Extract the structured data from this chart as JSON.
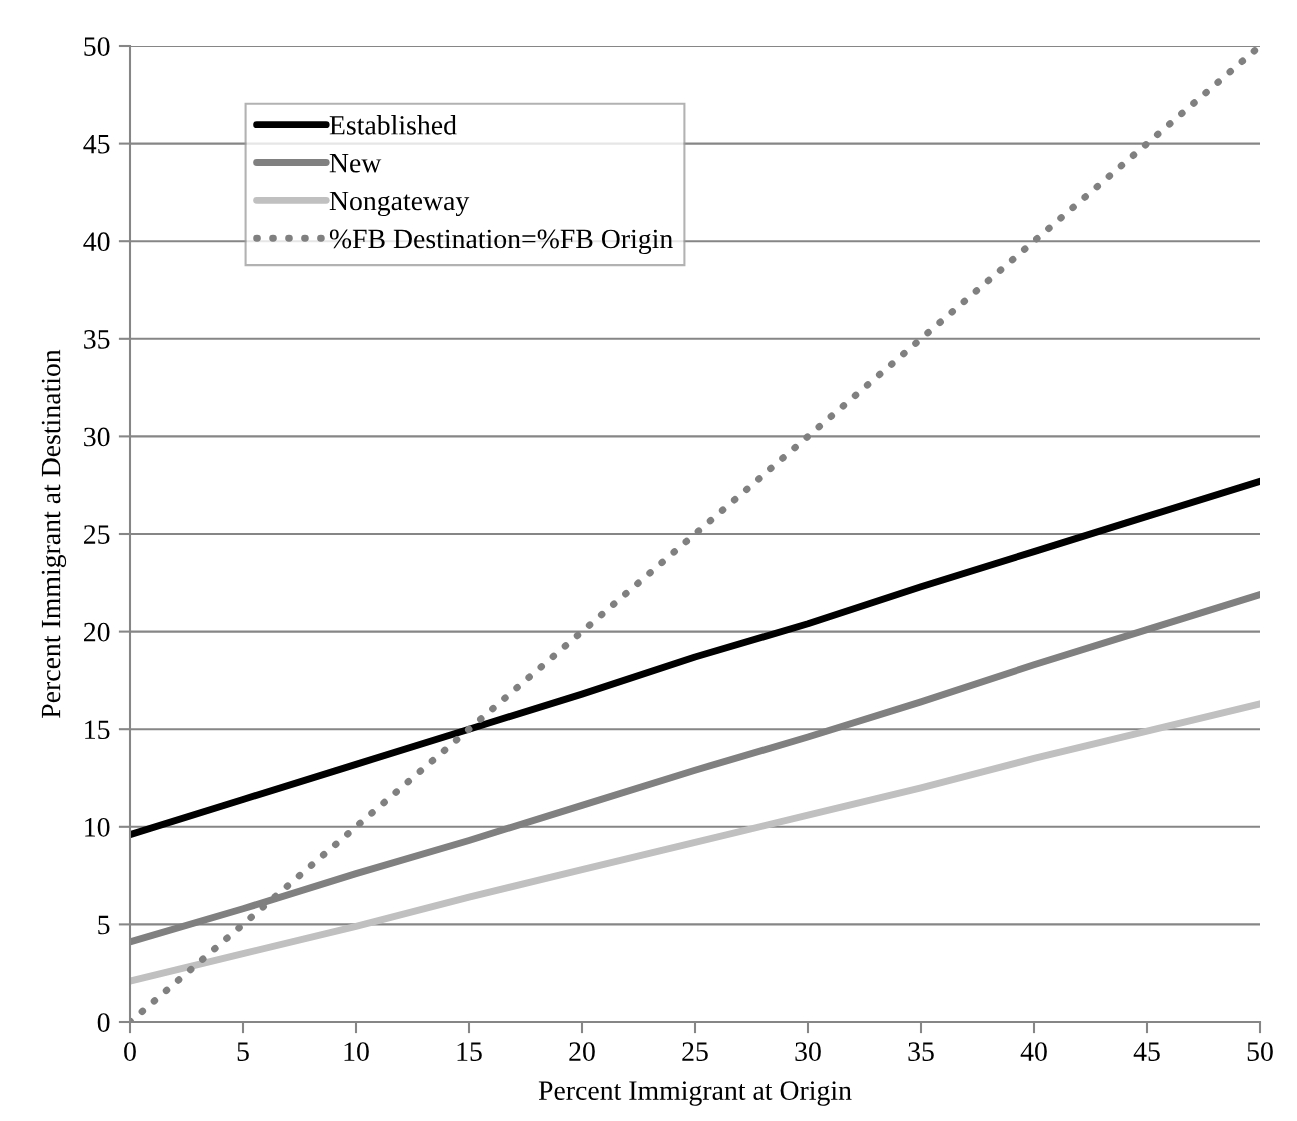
{
  "chart_data": {
    "type": "line",
    "xlabel": "Percent Immigrant at Origin",
    "ylabel": "Percent Immigrant at Destination",
    "x": [
      0,
      5,
      10,
      15,
      20,
      25,
      30,
      35,
      40,
      45,
      50
    ],
    "series": [
      {
        "name": "Established",
        "color": "#000000",
        "values": [
          9.6,
          11.4,
          13.2,
          15.0,
          16.8,
          18.7,
          20.4,
          22.3,
          24.1,
          25.9,
          27.7
        ]
      },
      {
        "name": "New",
        "color": "#808080",
        "values": [
          4.1,
          5.8,
          7.6,
          9.3,
          11.1,
          12.9,
          14.6,
          16.4,
          18.3,
          20.1,
          21.9
        ]
      },
      {
        "name": "Nongateway",
        "color": "#c0c0c0",
        "values": [
          2.1,
          3.5,
          4.9,
          6.4,
          7.8,
          9.2,
          10.6,
          12.0,
          13.5,
          14.9,
          16.3
        ]
      },
      {
        "name": "%FB Destination=%FB Origin",
        "color": "#808080",
        "line_style": "dotted",
        "values": [
          0,
          5,
          10,
          15,
          20,
          25,
          30,
          35,
          40,
          45,
          50
        ]
      }
    ],
    "xlim": [
      0,
      50
    ],
    "ylim": [
      0,
      50
    ],
    "xticks": [
      0,
      5,
      10,
      15,
      20,
      25,
      30,
      35,
      40,
      45,
      50
    ],
    "yticks": [
      0,
      5,
      10,
      15,
      20,
      25,
      30,
      35,
      40,
      45,
      50
    ],
    "grid": "y",
    "legend": "top left",
    "marker": "none",
    "line_style": "solid"
  }
}
